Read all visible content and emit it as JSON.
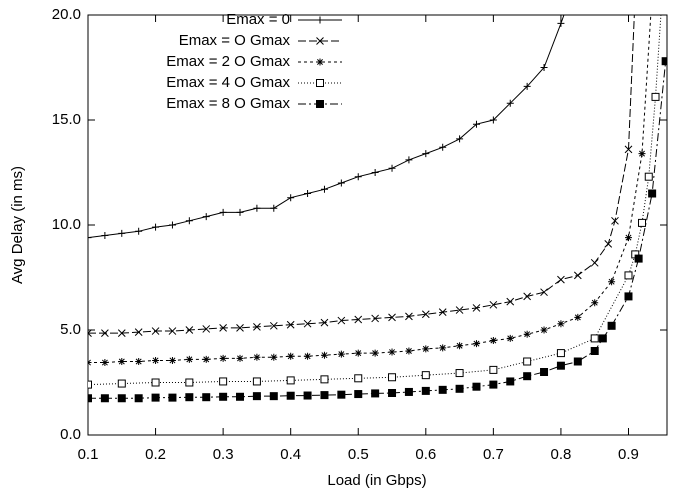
{
  "chart_data": {
    "type": "line",
    "x_label": "Load (in Gbps)",
    "y_label": "Avg Delay (in ms)",
    "xlim": [
      0.1,
      0.957
    ],
    "ylim": [
      0,
      20
    ],
    "xticks": [
      0.1,
      0.2,
      0.3,
      0.4,
      0.5,
      0.6,
      0.7,
      0.8,
      0.9
    ],
    "yticks": [
      {
        "value": 0,
        "label": "0.0"
      },
      {
        "value": 5,
        "label": "5.0"
      },
      {
        "value": 10,
        "label": "10.0"
      },
      {
        "value": 15,
        "label": "15.0"
      },
      {
        "value": 20,
        "label": "20.0"
      }
    ],
    "grid": false,
    "legend": "upper-left",
    "series": [
      {
        "name": "Emax = 0",
        "color": "#000000",
        "marker": "plus",
        "dash": "",
        "x": [
          0.1,
          0.125,
          0.15,
          0.175,
          0.2,
          0.225,
          0.25,
          0.275,
          0.3,
          0.325,
          0.35,
          0.375,
          0.4,
          0.425,
          0.45,
          0.475,
          0.5,
          0.525,
          0.55,
          0.575,
          0.6,
          0.625,
          0.65,
          0.675,
          0.7,
          0.725,
          0.75,
          0.775,
          0.8,
          0.81
        ],
        "values": [
          9.4,
          9.5,
          9.6,
          9.7,
          9.9,
          10.0,
          10.2,
          10.4,
          10.6,
          10.6,
          10.8,
          10.8,
          11.3,
          11.5,
          11.7,
          12.0,
          12.3,
          12.5,
          12.7,
          13.1,
          13.4,
          13.7,
          14.1,
          14.8,
          15.0,
          15.8,
          16.6,
          17.5,
          19.6,
          20.5
        ]
      },
      {
        "name": "Emax = O Gmax",
        "color": "#000000",
        "marker": "cross",
        "dash": "8 3",
        "x": [
          0.1,
          0.125,
          0.15,
          0.175,
          0.2,
          0.225,
          0.25,
          0.275,
          0.3,
          0.325,
          0.35,
          0.375,
          0.4,
          0.425,
          0.45,
          0.475,
          0.5,
          0.525,
          0.55,
          0.575,
          0.6,
          0.625,
          0.65,
          0.675,
          0.7,
          0.725,
          0.75,
          0.775,
          0.8,
          0.825,
          0.85,
          0.87,
          0.88,
          0.9,
          0.91
        ],
        "values": [
          4.85,
          4.85,
          4.85,
          4.9,
          4.95,
          4.95,
          5.0,
          5.05,
          5.1,
          5.1,
          5.15,
          5.2,
          5.25,
          5.3,
          5.35,
          5.45,
          5.5,
          5.55,
          5.6,
          5.65,
          5.75,
          5.85,
          5.95,
          6.05,
          6.2,
          6.35,
          6.6,
          6.8,
          7.4,
          7.6,
          8.2,
          9.1,
          10.2,
          13.6,
          21
        ]
      },
      {
        "name": "Emax = 2 O Gmax",
        "color": "#000000",
        "marker": "star",
        "dash": "3 3",
        "x": [
          0.1,
          0.125,
          0.15,
          0.175,
          0.2,
          0.225,
          0.25,
          0.275,
          0.3,
          0.325,
          0.35,
          0.375,
          0.4,
          0.425,
          0.45,
          0.475,
          0.5,
          0.525,
          0.55,
          0.575,
          0.6,
          0.625,
          0.65,
          0.675,
          0.7,
          0.725,
          0.75,
          0.775,
          0.8,
          0.825,
          0.85,
          0.875,
          0.9,
          0.92,
          0.935
        ],
        "values": [
          3.45,
          3.45,
          3.5,
          3.5,
          3.55,
          3.55,
          3.6,
          3.6,
          3.65,
          3.65,
          3.7,
          3.7,
          3.75,
          3.75,
          3.8,
          3.85,
          3.9,
          3.9,
          3.95,
          4.0,
          4.1,
          4.15,
          4.25,
          4.35,
          4.5,
          4.6,
          4.8,
          5.0,
          5.3,
          5.6,
          6.3,
          7.3,
          9.4,
          13.4,
          21
        ]
      },
      {
        "name": "Emax = 4 O Gmax",
        "color": "#000000",
        "marker": "square-open",
        "dash": "1 2",
        "x": [
          0.1,
          0.15,
          0.2,
          0.25,
          0.3,
          0.35,
          0.4,
          0.45,
          0.5,
          0.55,
          0.6,
          0.65,
          0.7,
          0.75,
          0.8,
          0.85,
          0.9,
          0.91,
          0.92,
          0.93,
          0.94,
          0.95
        ],
        "values": [
          2.4,
          2.45,
          2.5,
          2.5,
          2.55,
          2.55,
          2.6,
          2.65,
          2.7,
          2.75,
          2.85,
          2.95,
          3.1,
          3.5,
          3.9,
          4.6,
          7.6,
          8.6,
          10.1,
          12.3,
          16.1,
          21
        ]
      },
      {
        "name": "Emax = 8 O Gmax",
        "color": "#000000",
        "marker": "square-filled",
        "dash": "8 3 2 3",
        "x": [
          0.1,
          0.125,
          0.15,
          0.175,
          0.2,
          0.225,
          0.25,
          0.275,
          0.3,
          0.325,
          0.35,
          0.375,
          0.4,
          0.425,
          0.45,
          0.475,
          0.5,
          0.525,
          0.55,
          0.575,
          0.6,
          0.625,
          0.65,
          0.675,
          0.7,
          0.725,
          0.75,
          0.775,
          0.8,
          0.825,
          0.85,
          0.862,
          0.875,
          0.9,
          0.915,
          0.935,
          0.955
        ],
        "values": [
          1.75,
          1.75,
          1.75,
          1.75,
          1.78,
          1.78,
          1.8,
          1.8,
          1.82,
          1.82,
          1.85,
          1.85,
          1.87,
          1.88,
          1.9,
          1.92,
          1.95,
          1.98,
          2.0,
          2.05,
          2.1,
          2.15,
          2.2,
          2.3,
          2.4,
          2.55,
          2.8,
          3.0,
          3.3,
          3.5,
          4.0,
          4.6,
          5.2,
          6.6,
          8.4,
          11.5,
          17.8
        ]
      }
    ]
  }
}
